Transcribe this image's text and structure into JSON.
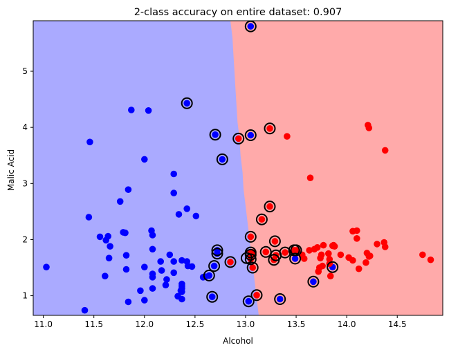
{
  "chart_data": {
    "type": "scatter",
    "title": "2-class accuracy on entire dataset: 0.907",
    "xlabel": "Alcohol",
    "ylabel": "Malic Acid",
    "xlim": [
      10.9,
      14.95
    ],
    "ylim": [
      0.65,
      5.9
    ],
    "xticks": [
      11.0,
      11.5,
      12.0,
      12.5,
      13.0,
      13.5,
      14.0,
      14.5
    ],
    "xtick_labels": [
      "11.0",
      "11.5",
      "12.0",
      "12.5",
      "13.0",
      "13.5",
      "14.0",
      "14.5"
    ],
    "yticks": [
      1,
      2,
      3,
      4,
      5
    ],
    "ytick_labels": [
      "1",
      "2",
      "3",
      "4",
      "5"
    ],
    "grid": false,
    "legend": "none",
    "background_regions": {
      "class_0_color": "#aaaaff",
      "class_1_color": "#ffaaaa",
      "boundary": [
        [
          12.85,
          5.9
        ],
        [
          12.87,
          5.6
        ],
        [
          12.88,
          5.3
        ],
        [
          12.89,
          5.0
        ],
        [
          12.9,
          4.7
        ],
        [
          12.91,
          4.4
        ],
        [
          12.92,
          4.1
        ],
        [
          12.94,
          3.8
        ],
        [
          12.95,
          3.5
        ],
        [
          12.97,
          3.2
        ],
        [
          12.98,
          2.9
        ],
        [
          13.0,
          2.6
        ],
        [
          13.02,
          2.3
        ],
        [
          13.04,
          2.0
        ],
        [
          13.06,
          1.7
        ],
        [
          13.08,
          1.4
        ],
        [
          13.1,
          1.1
        ],
        [
          13.12,
          0.8
        ],
        [
          13.13,
          0.65
        ]
      ]
    },
    "colors": {
      "class_0": "#0000ff",
      "class_1": "#ff0000",
      "misclassified_ring": "#000000"
    },
    "series": [
      {
        "class": 0,
        "points": [
          [
            11.03,
            1.51
          ],
          [
            11.41,
            0.74
          ],
          [
            11.45,
            2.4
          ],
          [
            11.46,
            3.74
          ],
          [
            11.56,
            2.05
          ],
          [
            11.61,
            1.35
          ],
          [
            11.62,
            1.99
          ],
          [
            11.64,
            2.06
          ],
          [
            11.65,
            1.67
          ],
          [
            11.66,
            1.88
          ],
          [
            11.76,
            2.68
          ],
          [
            11.79,
            2.13
          ],
          [
            11.81,
            2.12
          ],
          [
            11.82,
            1.72
          ],
          [
            11.82,
            1.47
          ],
          [
            11.84,
            2.89
          ],
          [
            11.84,
            0.89
          ],
          [
            11.87,
            4.31
          ],
          [
            11.96,
            1.09
          ],
          [
            12.0,
            3.43
          ],
          [
            12.0,
            0.92
          ],
          [
            12.0,
            1.51
          ],
          [
            12.04,
            4.3
          ],
          [
            12.07,
            2.16
          ],
          [
            12.08,
            2.08
          ],
          [
            12.08,
            1.83
          ],
          [
            12.08,
            1.39
          ],
          [
            12.08,
            1.33
          ],
          [
            12.08,
            1.13
          ],
          [
            12.16,
            1.61
          ],
          [
            12.17,
            1.45
          ],
          [
            12.21,
            1.19
          ],
          [
            12.22,
            1.29
          ],
          [
            12.25,
            1.73
          ],
          [
            12.29,
            3.17
          ],
          [
            12.29,
            2.83
          ],
          [
            12.29,
            1.61
          ],
          [
            12.29,
            1.41
          ],
          [
            12.33,
            0.99
          ],
          [
            12.34,
            2.45
          ],
          [
            12.36,
            1.09
          ],
          [
            12.37,
            1.17
          ],
          [
            12.37,
            1.07
          ],
          [
            12.37,
            1.63
          ],
          [
            12.37,
            0.94
          ],
          [
            12.37,
            1.13
          ],
          [
            12.37,
            1.21
          ],
          [
            12.42,
            2.55
          ],
          [
            12.42,
            1.61
          ],
          [
            12.43,
            1.53
          ],
          [
            12.47,
            1.52
          ],
          [
            12.51,
            2.42
          ],
          [
            12.58,
            1.33
          ],
          [
            12.6,
            1.34
          ],
          [
            12.64,
            1.36
          ],
          [
            12.67,
            0.98
          ],
          [
            12.69,
            1.53
          ],
          [
            12.7,
            3.87
          ],
          [
            12.72,
            1.75
          ],
          [
            12.72,
            1.81
          ],
          [
            12.77,
            3.43
          ],
          [
            13.03,
            0.9
          ],
          [
            13.05,
            5.8
          ],
          [
            13.05,
            3.86
          ],
          [
            13.34,
            0.94
          ],
          [
            13.49,
            1.66
          ],
          [
            13.67,
            1.25
          ],
          [
            13.86,
            1.51
          ],
          [
            12.42,
            4.43
          ]
        ]
      },
      {
        "class": 1,
        "points": [
          [
            12.85,
            1.6
          ],
          [
            12.93,
            3.8
          ],
          [
            13.05,
            2.05
          ],
          [
            13.05,
            1.77
          ],
          [
            13.05,
            1.73
          ],
          [
            13.05,
            1.65
          ],
          [
            13.07,
            1.5
          ],
          [
            13.11,
            1.01
          ],
          [
            13.16,
            2.36
          ],
          [
            13.2,
            1.78
          ],
          [
            13.24,
            2.59
          ],
          [
            13.24,
            3.98
          ],
          [
            13.28,
            1.64
          ],
          [
            13.29,
            1.97
          ],
          [
            13.3,
            1.72
          ],
          [
            13.39,
            1.77
          ],
          [
            13.41,
            3.84
          ],
          [
            13.48,
            1.81
          ],
          [
            13.5,
            1.81
          ],
          [
            13.51,
            1.8
          ],
          [
            13.56,
            1.73
          ],
          [
            13.56,
            1.71
          ],
          [
            13.58,
            1.66
          ],
          [
            13.63,
            1.81
          ],
          [
            13.64,
            3.1
          ],
          [
            13.68,
            1.83
          ],
          [
            13.71,
            1.86
          ],
          [
            13.72,
            1.43
          ],
          [
            13.73,
            1.5
          ],
          [
            13.74,
            1.67
          ],
          [
            13.75,
            1.73
          ],
          [
            13.76,
            1.53
          ],
          [
            13.77,
            1.9
          ],
          [
            13.82,
            1.75
          ],
          [
            13.83,
            1.57
          ],
          [
            13.83,
            1.65
          ],
          [
            13.84,
            1.35
          ],
          [
            13.86,
            1.89
          ],
          [
            13.87,
            1.9
          ],
          [
            13.88,
            1.88
          ],
          [
            13.94,
            1.73
          ],
          [
            14.02,
            1.68
          ],
          [
            14.06,
            1.63
          ],
          [
            14.06,
            2.15
          ],
          [
            14.1,
            2.02
          ],
          [
            14.1,
            2.16
          ],
          [
            14.12,
            1.48
          ],
          [
            14.19,
            1.59
          ],
          [
            14.2,
            1.76
          ],
          [
            14.21,
            4.04
          ],
          [
            14.22,
            1.7
          ],
          [
            14.22,
            3.99
          ],
          [
            14.23,
            1.71
          ],
          [
            14.3,
            1.92
          ],
          [
            14.37,
            1.95
          ],
          [
            14.38,
            1.87
          ],
          [
            14.38,
            3.59
          ],
          [
            14.75,
            1.73
          ],
          [
            14.83,
            1.64
          ],
          [
            13.07,
            1.77
          ]
        ]
      }
    ],
    "misclassified": [
      [
        12.42,
        4.43
      ],
      [
        12.7,
        3.87
      ],
      [
        12.77,
        3.43
      ],
      [
        12.67,
        0.98
      ],
      [
        12.64,
        1.36
      ],
      [
        12.69,
        1.53
      ],
      [
        12.72,
        1.75
      ],
      [
        12.72,
        1.81
      ],
      [
        12.85,
        1.6
      ],
      [
        12.93,
        3.8
      ],
      [
        13.03,
        0.9
      ],
      [
        13.05,
        5.8
      ],
      [
        13.05,
        3.86
      ],
      [
        13.05,
        2.05
      ],
      [
        13.05,
        1.77
      ],
      [
        13.05,
        1.73
      ],
      [
        13.05,
        1.65
      ],
      [
        13.07,
        1.5
      ],
      [
        13.11,
        1.01
      ],
      [
        13.16,
        2.36
      ],
      [
        13.2,
        1.78
      ],
      [
        13.24,
        2.59
      ],
      [
        13.24,
        3.98
      ],
      [
        13.28,
        1.64
      ],
      [
        13.29,
        1.97
      ],
      [
        13.3,
        1.72
      ],
      [
        13.34,
        0.94
      ],
      [
        13.39,
        1.77
      ],
      [
        13.49,
        1.66
      ],
      [
        13.48,
        1.81
      ],
      [
        13.5,
        1.81
      ],
      [
        13.67,
        1.25
      ],
      [
        13.86,
        1.51
      ],
      [
        13.01,
        1.67
      ]
    ]
  }
}
